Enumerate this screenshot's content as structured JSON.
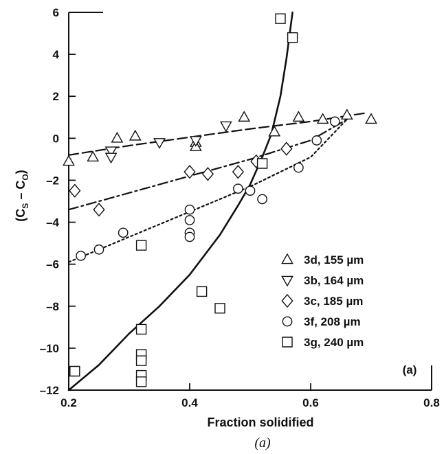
{
  "chart_data": {
    "type": "scatter",
    "xlabel": "Fraction solidified",
    "ylabel_main": "(C",
    "ylabel_sub1": "S",
    "ylabel_mid": " – C",
    "ylabel_sub2": "O",
    "ylabel_end": ")",
    "xlim": [
      0.2,
      0.8
    ],
    "ylim": [
      -12,
      6
    ],
    "xticks": [
      0.2,
      0.4,
      0.6,
      0.8
    ],
    "xtick_labels": [
      "0.2",
      "0.4",
      "0.6",
      "0.8"
    ],
    "yticks": [
      -12,
      -10,
      -8,
      -6,
      -4,
      -2,
      0,
      2,
      4,
      6
    ],
    "ytick_labels": [
      "–12",
      "–10",
      "–8",
      "–6",
      "–4",
      "–2",
      "0",
      "2",
      "4",
      "6"
    ],
    "panel_label": "(a)",
    "caption": "(a)",
    "legend_position": "lower-right",
    "series": [
      {
        "name": "3d, 155 µm",
        "marker": "triangle-up",
        "points": [
          [
            0.2,
            -1.1
          ],
          [
            0.24,
            -0.9
          ],
          [
            0.28,
            0.0
          ],
          [
            0.31,
            0.1
          ],
          [
            0.41,
            -0.2
          ],
          [
            0.41,
            -0.4
          ],
          [
            0.49,
            1.0
          ],
          [
            0.54,
            0.3
          ],
          [
            0.58,
            1.0
          ],
          [
            0.62,
            0.9
          ],
          [
            0.66,
            1.1
          ],
          [
            0.7,
            0.9
          ]
        ]
      },
      {
        "name": "3b, 164 µm",
        "marker": "triangle-down",
        "points": [
          [
            0.27,
            -0.6
          ],
          [
            0.27,
            -0.9
          ],
          [
            0.35,
            -0.2
          ],
          [
            0.41,
            -0.1
          ],
          [
            0.46,
            0.6
          ]
        ]
      },
      {
        "name": "3c, 185 µm",
        "marker": "diamond",
        "points": [
          [
            0.21,
            -2.5
          ],
          [
            0.25,
            -3.4
          ],
          [
            0.4,
            -1.6
          ],
          [
            0.43,
            -1.7
          ],
          [
            0.48,
            -1.6
          ],
          [
            0.51,
            -1.1
          ],
          [
            0.56,
            -0.5
          ]
        ]
      },
      {
        "name": "3f, 208 µm",
        "marker": "circle",
        "points": [
          [
            0.22,
            -5.6
          ],
          [
            0.25,
            -5.3
          ],
          [
            0.29,
            -4.5
          ],
          [
            0.4,
            -3.4
          ],
          [
            0.4,
            -3.9
          ],
          [
            0.4,
            -4.5
          ],
          [
            0.4,
            -4.7
          ],
          [
            0.48,
            -2.4
          ],
          [
            0.5,
            -2.5
          ],
          [
            0.52,
            -2.9
          ],
          [
            0.58,
            -1.4
          ],
          [
            0.61,
            -0.1
          ],
          [
            0.64,
            0.8
          ]
        ]
      },
      {
        "name": "3g, 240 µm",
        "marker": "square",
        "points": [
          [
            0.21,
            -11.1
          ],
          [
            0.32,
            -5.1
          ],
          [
            0.32,
            -9.1
          ],
          [
            0.32,
            -10.3
          ],
          [
            0.32,
            -10.6
          ],
          [
            0.32,
            -11.3
          ],
          [
            0.32,
            -11.6
          ],
          [
            0.42,
            -7.3
          ],
          [
            0.45,
            -8.1
          ],
          [
            0.52,
            -1.2
          ],
          [
            0.55,
            5.7
          ],
          [
            0.57,
            4.8
          ]
        ]
      }
    ],
    "fit_lines": [
      {
        "style": "long-dash",
        "points": [
          [
            0.2,
            -0.8
          ],
          [
            0.3,
            -0.35
          ],
          [
            0.4,
            0.05
          ],
          [
            0.5,
            0.45
          ],
          [
            0.6,
            0.8
          ],
          [
            0.69,
            1.2
          ]
        ]
      },
      {
        "style": "dash-dot",
        "points": [
          [
            0.2,
            -3.4
          ],
          [
            0.3,
            -2.6
          ],
          [
            0.4,
            -1.8
          ],
          [
            0.5,
            -1.0
          ],
          [
            0.6,
            -0.1
          ],
          [
            0.66,
            0.9
          ]
        ]
      },
      {
        "style": "dotted",
        "points": [
          [
            0.2,
            -5.9
          ],
          [
            0.3,
            -4.7
          ],
          [
            0.4,
            -3.5
          ],
          [
            0.5,
            -2.3
          ],
          [
            0.6,
            -0.9
          ],
          [
            0.66,
            0.9
          ]
        ]
      },
      {
        "style": "solid",
        "points": [
          [
            0.2,
            -12.0
          ],
          [
            0.25,
            -10.8
          ],
          [
            0.3,
            -9.3
          ],
          [
            0.35,
            -8.0
          ],
          [
            0.4,
            -6.5
          ],
          [
            0.45,
            -4.6
          ],
          [
            0.48,
            -3.2
          ],
          [
            0.5,
            -2.2
          ],
          [
            0.52,
            -0.9
          ],
          [
            0.535,
            0.2
          ],
          [
            0.55,
            2.0
          ],
          [
            0.56,
            3.8
          ],
          [
            0.57,
            6.0
          ]
        ]
      }
    ]
  }
}
